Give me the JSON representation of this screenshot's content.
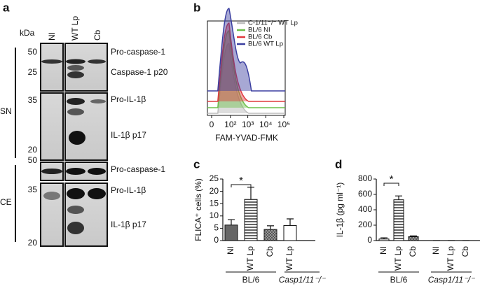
{
  "figure": {
    "panel_a": {
      "letter": "a",
      "column_headers": [
        "kDa",
        "NI",
        "WT Lp",
        "Cb"
      ],
      "markers": [
        "50",
        "25",
        "35",
        "20",
        "50",
        "35",
        "20"
      ],
      "bands": [
        "Pro-caspase-1",
        "Caspase-1 p20",
        "Pro-IL-1β",
        "IL-1β p17",
        "Pro-caspase-1",
        "Pro-IL-1β",
        "IL-1β p17"
      ],
      "fractions": [
        "SN",
        "CE"
      ]
    },
    "panel_letters": [
      "b",
      "c",
      "d"
    ]
  },
  "chart_data": [
    {
      "type": "histogram-overlay",
      "x_label": "FAM-YVAD-FMK",
      "xticks": [
        {
          "value": 0,
          "label": "0"
        },
        {
          "value": 100,
          "label": "10²"
        },
        {
          "value": 1000,
          "label": "10³"
        },
        {
          "value": 10000,
          "label": "10⁴"
        },
        {
          "value": 100000,
          "label": "10⁵"
        }
      ],
      "xlim": [
        0,
        100000
      ],
      "series": [
        {
          "name": "C-1/11⁻/⁻ WT Lp",
          "color": "#bdbdbd"
        },
        {
          "name": "BL/6 NI",
          "color": "#6cbf4a"
        },
        {
          "name": "BL/6 Cb",
          "color": "#e0383e"
        },
        {
          "name": "BL/6 WT Lp",
          "color": "#3b3fa0"
        }
      ]
    },
    {
      "type": "bar",
      "y_label": "FLICA⁺ cells (%)",
      "ylim": [
        0,
        25
      ],
      "yticks": [
        0,
        5,
        10,
        15,
        20,
        25
      ],
      "annotation": "*",
      "groups": [
        {
          "name": "BL/6",
          "categories": [
            "NI",
            "WT Lp",
            "Cb"
          ],
          "values": [
            6.3,
            16.7,
            4.5
          ],
          "errors": [
            2.2,
            5,
            1.5
          ],
          "patterns": [
            "solid",
            "hstripe",
            "cross"
          ]
        },
        {
          "name": "Casp1/11⁻/⁻",
          "categories": [
            "WT Lp"
          ],
          "values": [
            6.1
          ],
          "errors": [
            2.7
          ],
          "patterns": [
            "none"
          ]
        }
      ]
    },
    {
      "type": "bar",
      "y_label": "IL-1β (pg ml⁻¹)",
      "ylim": [
        0,
        800
      ],
      "yticks": [
        0,
        200,
        400,
        600,
        800
      ],
      "annotation": "*",
      "groups": [
        {
          "name": "BL/6",
          "categories": [
            "NI",
            "WT Lp",
            "Cb"
          ],
          "values": [
            20,
            530,
            50
          ],
          "errors": [
            15,
            50,
            10
          ],
          "patterns": [
            "none",
            "hstripe",
            "cross"
          ]
        },
        {
          "name": "Casp1/11⁻/⁻",
          "categories": [
            "NI",
            "WT Lp",
            "Cb"
          ],
          "values": [
            0,
            0,
            0
          ],
          "errors": [
            0,
            0,
            0
          ],
          "patterns": [
            "none",
            "hstripe",
            "cross"
          ]
        }
      ]
    }
  ]
}
